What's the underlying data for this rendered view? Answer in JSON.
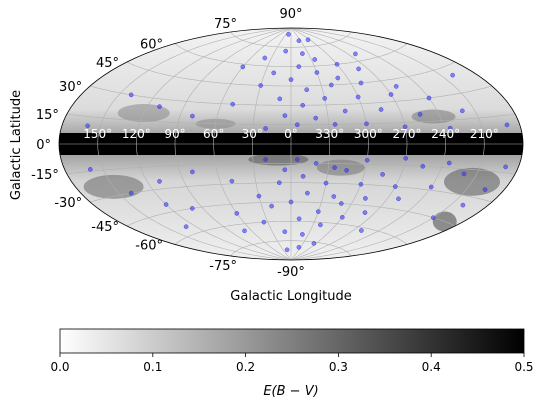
{
  "chart_data": {
    "type": "scatter",
    "projection": "aitoff",
    "background_map": "grayscale dust-extinction sky map, dark along the Galactic plane",
    "xlabel": "Galactic Longitude",
    "ylabel": "Galactic Latitude",
    "lon_ticks": [
      "150°",
      "120°",
      "90°",
      "60°",
      "30°",
      "0°",
      "330°",
      "300°",
      "270°",
      "240°",
      "210°"
    ],
    "lon_tick_values": [
      150,
      120,
      90,
      60,
      30,
      0,
      -30,
      -60,
      -90,
      -120,
      -150
    ],
    "lat_ticks": [
      "90°",
      "75°",
      "60°",
      "45°",
      "30°",
      "15°",
      "0°",
      "-15°",
      "-30°",
      "-45°",
      "-60°",
      "-75°",
      "-90°"
    ],
    "lat_tick_values": [
      90,
      75,
      60,
      45,
      30,
      15,
      0,
      -15,
      -30,
      -45,
      -60,
      -75,
      -90
    ],
    "grid": true,
    "series": [
      {
        "marker_color": "#2f2fe8",
        "points": [
          [
            -20,
            70
          ],
          [
            -35,
            65
          ],
          [
            10,
            72
          ],
          [
            40,
            66
          ],
          [
            -60,
            60
          ],
          [
            -80,
            55
          ],
          [
            60,
            58
          ],
          [
            -10,
            60
          ],
          [
            -30,
            55
          ],
          [
            -50,
            50
          ],
          [
            20,
            55
          ],
          [
            -70,
            45
          ],
          [
            -100,
            40
          ],
          [
            -40,
            45
          ],
          [
            0,
            50
          ],
          [
            30,
            45
          ],
          [
            -15,
            42
          ],
          [
            -90,
            35
          ],
          [
            -120,
            30
          ],
          [
            -60,
            35
          ],
          [
            -30,
            35
          ],
          [
            -10,
            30
          ],
          [
            10,
            35
          ],
          [
            50,
            30
          ],
          [
            -45,
            25
          ],
          [
            -75,
            25
          ],
          [
            -140,
            20
          ],
          [
            -105,
            20
          ],
          [
            5,
            22
          ],
          [
            -20,
            20
          ],
          [
            -35,
            15
          ],
          [
            -60,
            15
          ],
          [
            -90,
            12
          ],
          [
            -125,
            10
          ],
          [
            20,
            12
          ],
          [
            -5,
            15
          ],
          [
            80,
            20
          ],
          [
            110,
            25
          ],
          [
            140,
            30
          ],
          [
            -160,
            40
          ],
          [
            -170,
            10
          ],
          [
            160,
            10
          ],
          [
            -25,
            80
          ],
          [
            15,
            85
          ],
          [
            -55,
            80
          ],
          [
            -100,
            65
          ],
          [
            -20,
            -70
          ],
          [
            -40,
            -62
          ],
          [
            10,
            -68
          ],
          [
            35,
            -60
          ],
          [
            -60,
            -55
          ],
          [
            -80,
            -50
          ],
          [
            60,
            -52
          ],
          [
            -10,
            -58
          ],
          [
            -30,
            -52
          ],
          [
            -50,
            -45
          ],
          [
            20,
            -48
          ],
          [
            -70,
            -40
          ],
          [
            -100,
            -38
          ],
          [
            -40,
            -40
          ],
          [
            0,
            -45
          ],
          [
            30,
            -40
          ],
          [
            -15,
            -38
          ],
          [
            -90,
            -30
          ],
          [
            -120,
            -28
          ],
          [
            -60,
            -30
          ],
          [
            -30,
            -30
          ],
          [
            -10,
            -25
          ],
          [
            10,
            -30
          ],
          [
            50,
            -28
          ],
          [
            -45,
            -20
          ],
          [
            -75,
            -22
          ],
          [
            -140,
            -18
          ],
          [
            -105,
            -15
          ],
          [
            5,
            -20
          ],
          [
            -20,
            -15
          ],
          [
            -35,
            -18
          ],
          [
            -60,
            -12
          ],
          [
            -90,
            -10
          ],
          [
            -125,
            -12
          ],
          [
            20,
            -12
          ],
          [
            -5,
            -12
          ],
          [
            80,
            -20
          ],
          [
            110,
            -25
          ],
          [
            140,
            -30
          ],
          [
            -160,
            -35
          ],
          [
            -170,
            -12
          ],
          [
            160,
            -14
          ],
          [
            -25,
            -80
          ],
          [
            15,
            -82
          ],
          [
            -55,
            -76
          ],
          [
            -100,
            -62
          ],
          [
            70,
            -65
          ],
          [
            100,
            -45
          ],
          [
            120,
            -40
          ],
          [
            -150,
            -45
          ],
          [
            -165,
            -25
          ],
          [
            130,
            -55
          ]
        ]
      }
    ],
    "colorbar": {
      "label": "E(B − V)",
      "range": [
        0,
        0.5
      ],
      "ticks": [
        "0.0",
        "0.1",
        "0.2",
        "0.3",
        "0.4",
        "0.5"
      ],
      "tick_values": [
        0,
        0.1,
        0.2,
        0.3,
        0.4,
        0.5
      ],
      "colors": [
        "#ffffff",
        "#000000"
      ]
    },
    "colors": {
      "plane": "#000000",
      "grid": "#b0b0b0",
      "lon_tick_text": "#ffffff"
    }
  }
}
